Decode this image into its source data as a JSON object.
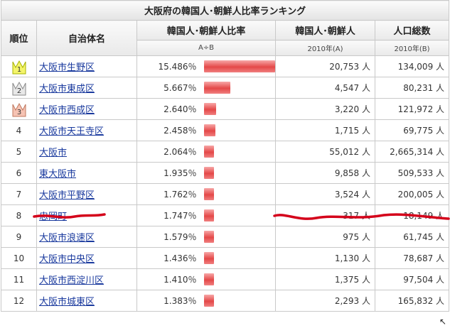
{
  "caption": "大阪府の韓国人･朝鮮人比率ランキング",
  "headers": {
    "rank": "順位",
    "name": "自治体名",
    "ratio": "韓国人･朝鮮人比率",
    "ratio_sub": "A÷B",
    "korean": "韓国人･朝鮮人",
    "korean_sub": "2010年(A)",
    "pop": "人口総数",
    "pop_sub": "2010年(B)"
  },
  "rows": [
    {
      "rank": "1",
      "name": "大阪市生野区",
      "ratio": "15.486％",
      "ratio_value": 15.486,
      "korean": "20,753 人",
      "pop": "134,009 人",
      "crown": "gold"
    },
    {
      "rank": "2",
      "name": "大阪市東成区",
      "ratio": "5.667％",
      "ratio_value": 5.667,
      "korean": "4,547 人",
      "pop": "80,231 人",
      "crown": "silver"
    },
    {
      "rank": "3",
      "name": "大阪市西成区",
      "ratio": "2.640％",
      "ratio_value": 2.64,
      "korean": "3,220 人",
      "pop": "121,972 人",
      "crown": "bronze"
    },
    {
      "rank": "4",
      "name": "大阪市天王寺区",
      "ratio": "2.458％",
      "ratio_value": 2.458,
      "korean": "1,715 人",
      "pop": "69,775 人"
    },
    {
      "rank": "5",
      "name": "大阪市",
      "ratio": "2.064％",
      "ratio_value": 2.064,
      "korean": "55,012 人",
      "pop": "2,665,314 人"
    },
    {
      "rank": "6",
      "name": "東大阪市",
      "ratio": "1.935％",
      "ratio_value": 1.935,
      "korean": "9,858 人",
      "pop": "509,533 人"
    },
    {
      "rank": "7",
      "name": "大阪市平野区",
      "ratio": "1.762％",
      "ratio_value": 1.762,
      "korean": "3,524 人",
      "pop": "200,005 人"
    },
    {
      "rank": "8",
      "name": "忠岡町",
      "ratio": "1.747％",
      "ratio_value": 1.747,
      "korean": "317 人",
      "pop": "18,149 人"
    },
    {
      "rank": "9",
      "name": "大阪市浪速区",
      "ratio": "1.579％",
      "ratio_value": 1.579,
      "korean": "975 人",
      "pop": "61,745 人"
    },
    {
      "rank": "10",
      "name": "大阪市中央区",
      "ratio": "1.436％",
      "ratio_value": 1.436,
      "korean": "1,130 人",
      "pop": "78,687 人"
    },
    {
      "rank": "11",
      "name": "大阪市西淀川区",
      "ratio": "1.410％",
      "ratio_value": 1.41,
      "korean": "1,375 人",
      "pop": "97,504 人"
    },
    {
      "rank": "12",
      "name": "大阪市城東区",
      "ratio": "1.383％",
      "ratio_value": 1.383,
      "korean": "2,293 人",
      "pop": "165,832 人"
    }
  ],
  "colors": {
    "link": "#1a3a9e",
    "bar": "#e44848",
    "ink": "#d4001a"
  }
}
